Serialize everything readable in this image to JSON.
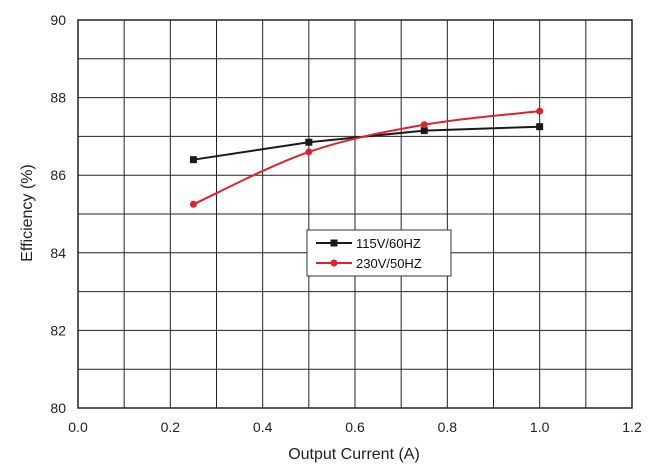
{
  "chart_data": {
    "type": "line",
    "xlabel": "Output Current (A)",
    "ylabel": "Efficiency (%)",
    "xlim": [
      0.0,
      1.2
    ],
    "ylim": [
      80,
      90
    ],
    "xticks": [
      "0.0",
      "0.2",
      "0.4",
      "0.6",
      "0.8",
      "1.0",
      "1.2"
    ],
    "yticks": [
      "80",
      "82",
      "84",
      "86",
      "88",
      "90"
    ],
    "x_minor_step": 0.1,
    "y_minor_step": 1,
    "grid": true,
    "legend_position": "center",
    "series": [
      {
        "name": "115V/60HZ",
        "color": "#1a1a1a",
        "marker": "square",
        "x": [
          0.25,
          0.5,
          0.75,
          1.0
        ],
        "y": [
          86.4,
          86.85,
          87.15,
          87.25
        ]
      },
      {
        "name": "230V/50HZ",
        "color": "#e0202a",
        "marker": "circle",
        "x": [
          0.25,
          0.5,
          0.75,
          1.0
        ],
        "y": [
          85.25,
          86.6,
          87.3,
          87.65
        ]
      }
    ]
  }
}
